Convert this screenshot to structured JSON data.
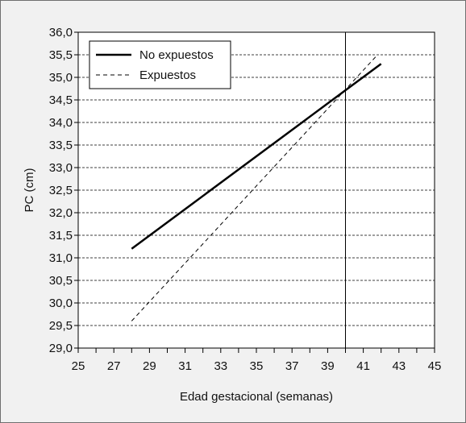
{
  "chart_data": {
    "type": "line",
    "title": "",
    "xlabel": "Edad gestacional (semanas)",
    "ylabel": "PC (cm)",
    "xlim": [
      25,
      45
    ],
    "ylim": [
      29.0,
      36.0
    ],
    "x_ticks": [
      25,
      26,
      27,
      28,
      29,
      30,
      31,
      32,
      33,
      34,
      35,
      36,
      37,
      38,
      39,
      40,
      41,
      42,
      43,
      44,
      45
    ],
    "x_tick_labels": [
      "25",
      "27",
      "29",
      "31",
      "33",
      "35",
      "37",
      "39",
      "41",
      "43",
      "45"
    ],
    "y_tick_labels": [
      "29,0",
      "29,5",
      "30,0",
      "30,5",
      "31,0",
      "31,5",
      "32,0",
      "32,5",
      "33,0",
      "33,5",
      "34,0",
      "34,5",
      "35,0",
      "35,5",
      "36,0"
    ],
    "grid": "horizontal dashed",
    "reference_line_x": 40,
    "legend_position": "top-left",
    "series": [
      {
        "name": "No expuestos",
        "style": "solid",
        "color": "#000000",
        "x": [
          28,
          42
        ],
        "y": [
          31.2,
          35.3
        ]
      },
      {
        "name": "Expuestos",
        "style": "dashed",
        "color": "#000000",
        "x": [
          28,
          41.8
        ],
        "y": [
          29.6,
          35.5
        ]
      }
    ]
  }
}
